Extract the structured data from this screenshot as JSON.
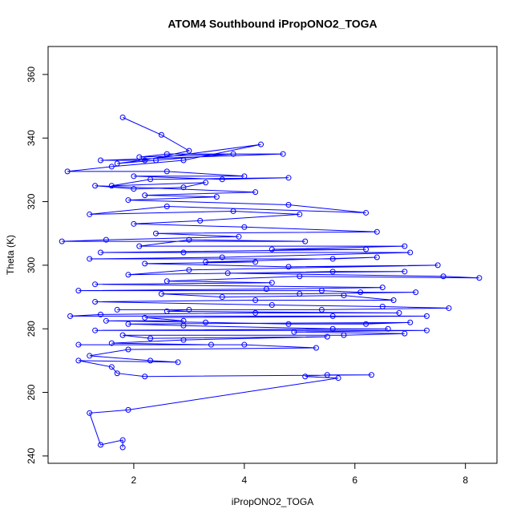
{
  "chart_data": {
    "type": "line",
    "title": "ATOM4 Southbound iPropONO2_TOGA",
    "x_label": "iPropONO2_TOGA",
    "y_label": "Theta (K)",
    "color": "#0000ff",
    "markers": true,
    "xlim": [
      0.45,
      8.57
    ],
    "ylim": [
      237.7,
      368.8
    ],
    "xticks": [
      2,
      4,
      6,
      8
    ],
    "yticks": [
      240,
      260,
      280,
      300,
      320,
      340,
      360
    ],
    "x": [
      1.8,
      2.5,
      3.0,
      2.2,
      1.4,
      4.7,
      2.6,
      2.1,
      3.8,
      2.4,
      1.7,
      4.3,
      2.9,
      1.6,
      0.8,
      2.6,
      4.0,
      2.0,
      3.6,
      4.8,
      2.3,
      1.6,
      3.3,
      2.9,
      2.0,
      1.3,
      4.2,
      2.2,
      3.5,
      1.9,
      4.8,
      6.2,
      2.6,
      1.2,
      3.8,
      5.0,
      3.2,
      2.0,
      4.0,
      6.4,
      2.4,
      3.9,
      1.5,
      0.7,
      5.1,
      3.0,
      2.1,
      6.9,
      4.5,
      6.2,
      1.4,
      2.9,
      7.0,
      3.6,
      1.2,
      5.6,
      6.4,
      3.3,
      4.2,
      2.2,
      4.8,
      7.5,
      3.0,
      1.9,
      5.6,
      6.9,
      3.7,
      7.6,
      8.25,
      5.0,
      2.6,
      4.5,
      1.3,
      6.5,
      4.4,
      1.0,
      5.4,
      6.1,
      7.1,
      5.0,
      2.5,
      3.6,
      5.8,
      6.7,
      4.2,
      1.3,
      4.5,
      6.5,
      7.7,
      5.4,
      1.7,
      3.0,
      2.6,
      6.8,
      4.2,
      1.4,
      0.85,
      5.6,
      7.3,
      2.2,
      2.9,
      1.5,
      3.3,
      4.8,
      6.2,
      7.0,
      1.9,
      2.9,
      5.6,
      6.6,
      1.3,
      7.3,
      4.9,
      6.9,
      5.8,
      1.8,
      2.3,
      5.5,
      2.9,
      1.6,
      3.4,
      1.0,
      4.0,
      5.3,
      1.9,
      1.2,
      2.3,
      2.8,
      1.0,
      1.6,
      1.7,
      2.2,
      6.3,
      5.5,
      5.1,
      5.7,
      1.9,
      1.2,
      1.4,
      1.8,
      1.8
    ],
    "values": [
      346.5,
      341,
      336,
      333,
      333,
      335,
      335,
      334,
      335,
      333,
      332,
      338,
      333,
      331,
      329.5,
      329.5,
      328,
      328,
      327,
      327.5,
      327,
      325,
      326,
      324.5,
      324,
      325,
      323,
      322,
      321.5,
      320.5,
      319,
      316.5,
      318.5,
      316,
      317,
      316,
      314,
      313,
      312,
      310.5,
      310,
      309,
      308,
      307.5,
      307.5,
      308,
      306,
      306,
      305,
      305,
      304,
      304,
      304,
      302.5,
      302,
      302,
      302.5,
      301,
      301,
      300.5,
      299.5,
      300,
      298.5,
      297,
      298,
      298,
      297.5,
      296.5,
      296,
      296.5,
      295,
      294.5,
      294,
      293,
      292.5,
      292,
      292,
      291.5,
      291.5,
      291,
      291,
      290,
      290.5,
      289,
      289,
      288.5,
      287.5,
      287,
      286.5,
      286,
      286,
      286,
      285.5,
      285,
      285,
      284.5,
      284,
      284,
      284,
      283.5,
      282.5,
      282.5,
      282,
      281.5,
      281.5,
      282,
      281.5,
      281,
      280,
      280,
      279.5,
      279.5,
      279,
      278.5,
      278,
      278,
      277,
      277.5,
      276.5,
      275.5,
      275,
      275,
      275,
      274,
      273.5,
      271.5,
      270,
      269.5,
      270,
      268,
      266,
      265,
      265.5,
      265.5,
      265,
      264.5,
      254.5,
      253.5,
      243.5,
      245,
      242.7
    ]
  }
}
